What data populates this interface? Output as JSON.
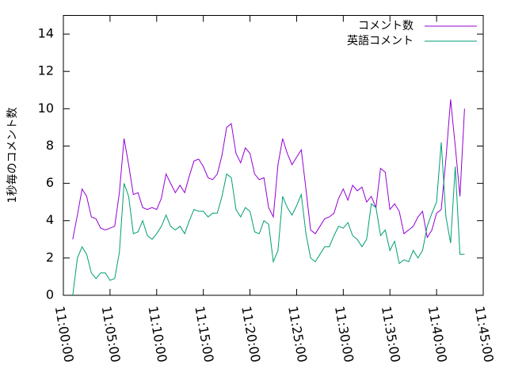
{
  "chart_data": {
    "type": "line",
    "y_label": "1秒毎のコメント数",
    "x": [
      "11:01:00",
      "11:01:30",
      "11:02:00",
      "11:02:30",
      "11:03:00",
      "11:03:30",
      "11:04:00",
      "11:04:30",
      "11:05:00",
      "11:05:30",
      "11:06:00",
      "11:06:30",
      "11:07:00",
      "11:07:30",
      "11:08:00",
      "11:08:30",
      "11:09:00",
      "11:09:30",
      "11:10:00",
      "11:10:30",
      "11:11:00",
      "11:11:30",
      "11:12:00",
      "11:12:30",
      "11:13:00",
      "11:13:30",
      "11:14:00",
      "11:14:30",
      "11:15:00",
      "11:15:30",
      "11:16:00",
      "11:16:30",
      "11:17:00",
      "11:17:30",
      "11:18:00",
      "11:18:30",
      "11:19:00",
      "11:19:30",
      "11:20:00",
      "11:20:30",
      "11:21:00",
      "11:21:30",
      "11:22:00",
      "11:22:30",
      "11:23:00",
      "11:23:30",
      "11:24:00",
      "11:24:30",
      "11:25:00",
      "11:25:30",
      "11:26:00",
      "11:26:30",
      "11:27:00",
      "11:27:30",
      "11:28:00",
      "11:28:30",
      "11:29:00",
      "11:29:30",
      "11:30:00",
      "11:30:30",
      "11:31:00",
      "11:31:30",
      "11:32:00",
      "11:32:30",
      "11:33:00",
      "11:33:30",
      "11:34:00",
      "11:34:30",
      "11:35:00",
      "11:35:30",
      "11:36:00",
      "11:36:30",
      "11:37:00",
      "11:37:30",
      "11:38:00",
      "11:38:30",
      "11:39:00",
      "11:39:30",
      "11:40:00",
      "11:40:30",
      "11:41:00",
      "11:41:30",
      "11:42:00",
      "11:42:30",
      "11:43:00"
    ],
    "series": [
      {
        "name": "コメント数",
        "color": "#9400d3",
        "values": [
          3.0,
          4.3,
          5.7,
          5.3,
          4.2,
          4.1,
          3.6,
          3.5,
          3.6,
          3.7,
          5.5,
          8.4,
          7.0,
          5.4,
          5.5,
          4.7,
          4.6,
          4.7,
          4.6,
          5.2,
          6.5,
          6.0,
          5.5,
          5.9,
          5.5,
          6.4,
          7.2,
          7.3,
          6.9,
          6.3,
          6.2,
          6.5,
          7.5,
          9.0,
          9.2,
          7.6,
          7.1,
          7.9,
          7.6,
          6.5,
          6.2,
          6.3,
          4.7,
          4.2,
          7.0,
          8.4,
          7.6,
          7.0,
          7.4,
          7.8,
          5.7,
          3.5,
          3.3,
          3.7,
          4.1,
          4.2,
          4.4,
          5.2,
          5.7,
          5.1,
          5.9,
          5.6,
          5.8,
          5.0,
          5.3,
          4.7,
          6.8,
          6.6,
          4.6,
          4.9,
          4.5,
          3.3,
          3.5,
          3.7,
          4.2,
          4.5,
          3.1,
          3.5,
          4.4,
          4.6,
          7.3,
          10.5,
          8.0,
          5.3,
          10.0
        ]
      },
      {
        "name": "英語コメント",
        "color": "#009e73",
        "values": [
          0.0,
          2.0,
          2.6,
          2.2,
          1.2,
          0.9,
          1.2,
          1.2,
          0.8,
          0.9,
          2.3,
          6.0,
          5.3,
          3.3,
          3.4,
          4.0,
          3.2,
          3.0,
          3.3,
          3.7,
          4.3,
          3.7,
          3.5,
          3.7,
          3.3,
          4.0,
          4.6,
          4.5,
          4.5,
          4.2,
          4.4,
          4.4,
          5.3,
          6.5,
          6.3,
          4.6,
          4.2,
          4.7,
          4.5,
          3.4,
          3.3,
          4.0,
          3.8,
          1.8,
          2.4,
          5.3,
          4.7,
          4.3,
          4.8,
          5.4,
          3.3,
          2.0,
          1.8,
          2.2,
          2.6,
          2.6,
          3.2,
          3.7,
          3.6,
          3.9,
          3.2,
          3.0,
          2.6,
          3.0,
          4.9,
          4.7,
          3.2,
          3.5,
          2.4,
          2.9,
          1.7,
          1.9,
          1.8,
          2.4,
          2.0,
          2.4,
          3.7,
          4.4,
          5.0,
          8.2,
          4.2,
          2.8,
          6.9,
          2.2,
          2.2
        ]
      }
    ],
    "xlim": [
      "11:00:00",
      "11:45:00"
    ],
    "xticks": [
      "11:00:00",
      "11:05:00",
      "11:10:00",
      "11:15:00",
      "11:20:00",
      "11:25:00",
      "11:30:00",
      "11:35:00",
      "11:40:00",
      "11:45:00"
    ],
    "ylim": [
      0,
      15
    ],
    "yticks": [
      0,
      2,
      4,
      6,
      8,
      10,
      12,
      14
    ],
    "legend": "top-right"
  }
}
